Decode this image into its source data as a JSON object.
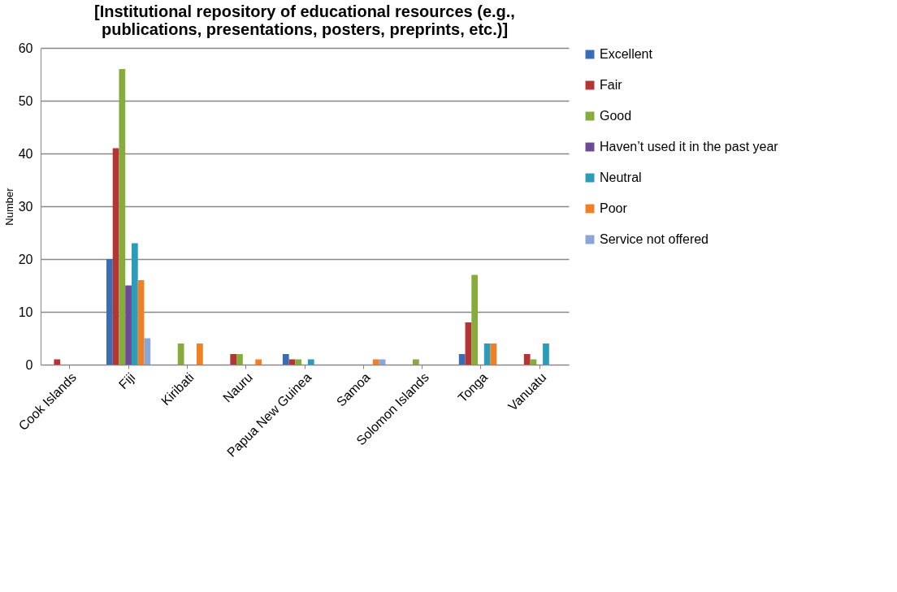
{
  "chart_data": {
    "type": "bar",
    "title": "[Institutional repository of educational resources (e.g., publications, presentations, posters, preprints, etc.)]",
    "ylabel": "Number",
    "categories": [
      "Cook Islands",
      "Fiji",
      "Kiribati",
      "Nauru",
      "Papua New Guinea",
      "Samoa",
      "Solomon Islands",
      "Tonga",
      "Vanuatu"
    ],
    "series": [
      {
        "name": "Excellent",
        "color": "#3a6db5",
        "values": [
          0,
          20,
          0,
          0,
          2,
          0,
          0,
          2,
          0
        ]
      },
      {
        "name": "Fair",
        "color": "#b33535",
        "values": [
          1,
          41,
          0,
          2,
          1,
          0,
          0,
          8,
          2
        ]
      },
      {
        "name": "Good",
        "color": "#87ab3c",
        "values": [
          0,
          56,
          4,
          2,
          1,
          0,
          1,
          17,
          1
        ]
      },
      {
        "name": "Haven’t used it in the past year",
        "color": "#6b4c94",
        "values": [
          0,
          15,
          0,
          0,
          0,
          0,
          0,
          0,
          0
        ]
      },
      {
        "name": "Neutral",
        "color": "#2c9db9",
        "values": [
          0,
          23,
          0,
          0,
          1,
          0,
          0,
          4,
          4
        ]
      },
      {
        "name": "Poor",
        "color": "#ee8126",
        "values": [
          0,
          16,
          4,
          1,
          0,
          1,
          0,
          4,
          0
        ]
      },
      {
        "name": "Service not offered",
        "color": "#8aa6d6",
        "values": [
          0,
          5,
          0,
          0,
          0,
          1,
          0,
          0,
          0
        ]
      }
    ],
    "ylim": [
      0,
      60
    ],
    "yticks": [
      0,
      10,
      20,
      30,
      40,
      50,
      60
    ],
    "grid": "y",
    "legend": "right"
  }
}
